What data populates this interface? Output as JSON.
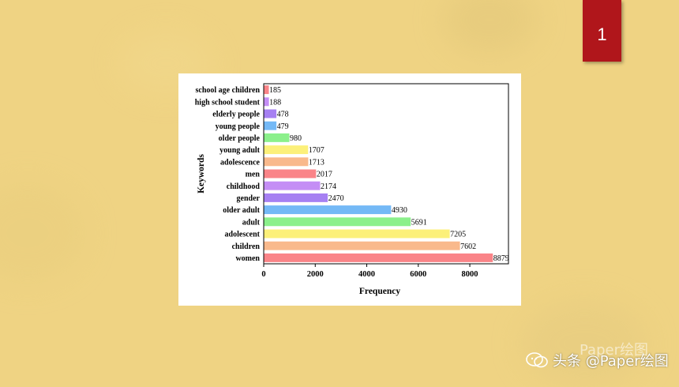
{
  "slide": {
    "number": "1"
  },
  "watermark": {
    "text": "头条 @Paper绘图",
    "ghost": "Paper绘图"
  },
  "colors": {
    "badge": "#B0161B",
    "background": "#EFD383"
  },
  "chart_data": {
    "type": "bar",
    "orientation": "horizontal",
    "title": "",
    "xlabel": "Frequency",
    "ylabel": "Keywords",
    "xlim": [
      0,
      9500
    ],
    "xticks": [
      0,
      2000,
      4000,
      6000,
      8000
    ],
    "grid": false,
    "categories": [
      "school age children",
      "high school student",
      "elderly people",
      "young people",
      "older people",
      "young adult",
      "adolescence",
      "men",
      "childhood",
      "gender",
      "older adult",
      "adult",
      "adolescent",
      "children",
      "women"
    ],
    "values": [
      185,
      188,
      478,
      479,
      980,
      1707,
      1713,
      2017,
      2174,
      2470,
      4930,
      5691,
      7205,
      7602,
      8879
    ],
    "data_labels": [
      "185",
      "188",
      "478",
      "479",
      "980",
      "1707",
      "1713",
      "2017",
      "2174",
      "2470",
      "4930",
      "5691",
      "7205",
      "7602",
      "8879"
    ],
    "bar_colors": [
      "#FA8488",
      "#C48EF5",
      "#A680F2",
      "#74B9F6",
      "#8BF08B",
      "#FCF07A",
      "#F9B98C",
      "#FA8488",
      "#C48EF5",
      "#A680F2",
      "#74B9F6",
      "#8BF08B",
      "#FCF07A",
      "#F9B98C",
      "#FA8488"
    ]
  }
}
